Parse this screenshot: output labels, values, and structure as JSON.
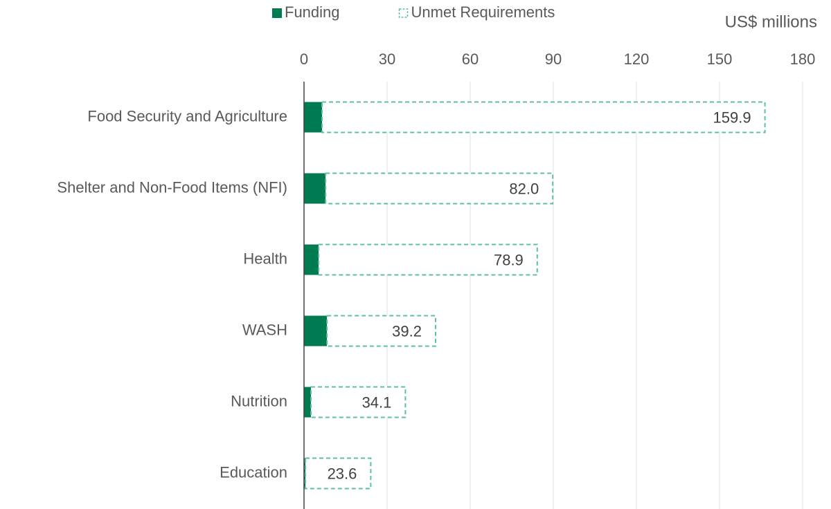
{
  "chart_data": {
    "type": "stacked-barh",
    "x_label": "US$ millions",
    "categories": [
      "Food Security and Agriculture",
      "Shelter and Non-Food Items (NFI)",
      "Health",
      "WASH",
      "Nutrition",
      "Education"
    ],
    "series": [
      {
        "name": "Funding",
        "color": "#007a53",
        "values": [
          6.5,
          7.8,
          5.3,
          8.3,
          2.5,
          0.5
        ]
      },
      {
        "name": "Unmet Requirements",
        "color": "#5cc29a",
        "dashed": true,
        "values": [
          159.9,
          82.0,
          78.9,
          39.2,
          34.1,
          23.6
        ],
        "value_labels": [
          "159.9",
          "82.0",
          "78.9",
          "39.2",
          "34.1",
          "23.6"
        ]
      }
    ],
    "xlim": [
      0,
      180
    ],
    "xticks": [
      0,
      30,
      60,
      90,
      120,
      150,
      180
    ],
    "grid": true
  }
}
